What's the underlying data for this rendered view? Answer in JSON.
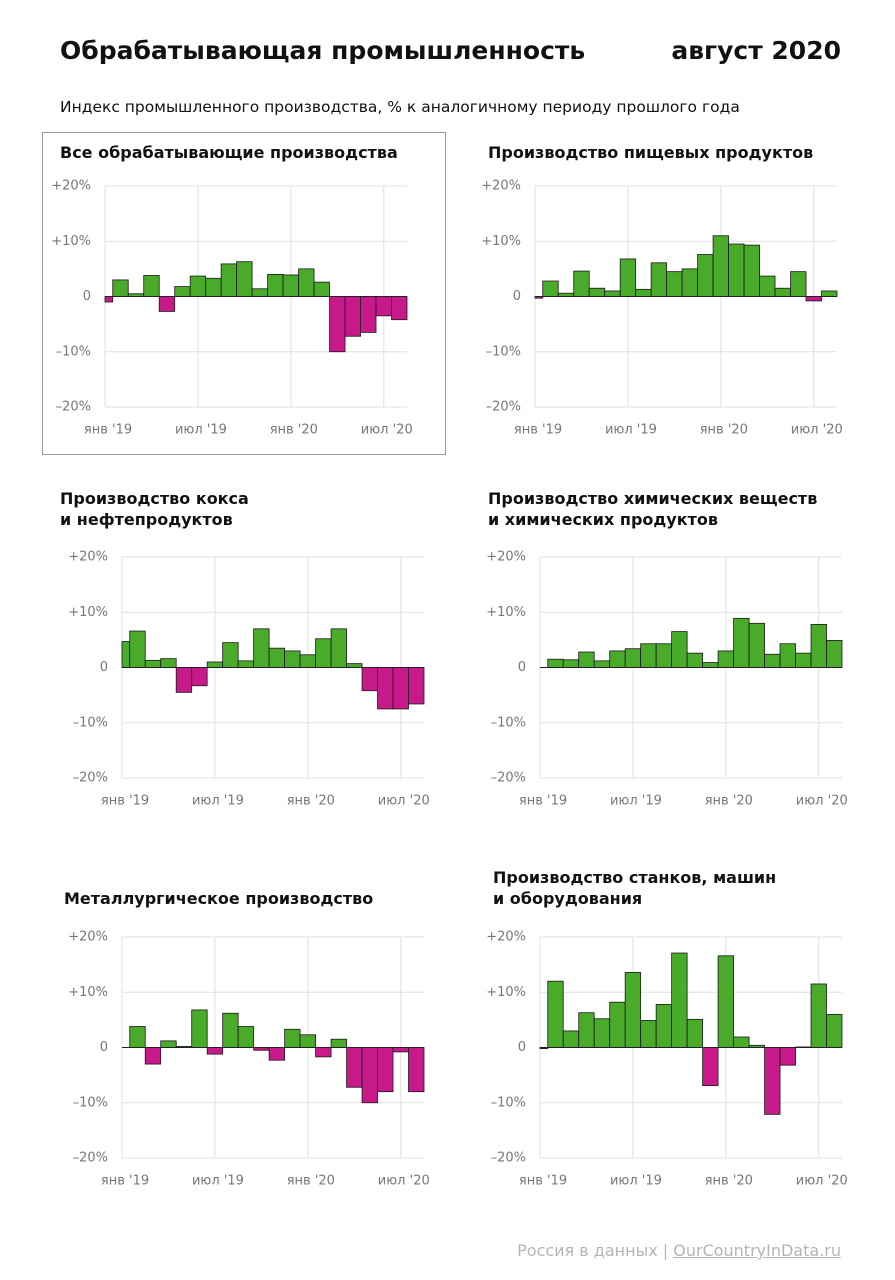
{
  "title": "Обрабатывающая промышленность",
  "date": "август 2020",
  "subtitle": "Индекс промышленного производства, % к аналогичному периоду прошлого года",
  "source": "Россия в данных",
  "separator": "|",
  "link": "OurCountryInData.ru",
  "chart_data": [
    {
      "type": "bar",
      "title": "Все обрабатывающие производства",
      "categories": [
        "янв '19",
        null,
        null,
        null,
        null,
        null,
        "июл '19",
        null,
        null,
        null,
        null,
        null,
        "янв '20",
        null,
        null,
        null,
        null,
        null,
        "июл '20",
        null
      ],
      "values": [
        -1,
        3,
        0.5,
        3.8,
        -2.7,
        1.8,
        3.7,
        3.3,
        5.9,
        6.3,
        1.4,
        4.0,
        3.9,
        5.0,
        2.6,
        -10,
        -7.2,
        -6.5,
        -3.5,
        -4.2
      ],
      "ylim": [
        -20,
        20
      ],
      "yticks": [
        {
          "value": -20,
          "label": "–20%"
        },
        {
          "value": -10,
          "label": "–10%"
        },
        0,
        {
          "value": 10,
          "label": "+10%"
        },
        {
          "value": 20,
          "label": "+20%"
        }
      ],
      "grid": true,
      "positive_color": "#4aaa2a",
      "negative_color": "#c8198a"
    },
    {
      "type": "bar",
      "title": "Производство пищевых продуктов",
      "categories": [
        "янв '19",
        null,
        null,
        null,
        null,
        null,
        "июл '19",
        null,
        null,
        null,
        null,
        null,
        "янв '20",
        null,
        null,
        null,
        null,
        null,
        "июл '20",
        null
      ],
      "values": [
        -0.3,
        2.8,
        0.6,
        4.6,
        1.5,
        1.0,
        6.8,
        1.3,
        6.1,
        4.5,
        5.0,
        7.6,
        11.0,
        9.5,
        9.3,
        3.7,
        1.5,
        4.5,
        -0.8,
        1.0
      ],
      "ylim": [
        -20,
        20
      ],
      "yticks": [
        {
          "value": -20,
          "label": "–20%"
        },
        {
          "value": -10,
          "label": "–10%"
        },
        0,
        {
          "value": 10,
          "label": "+10%"
        },
        {
          "value": 20,
          "label": "+20%"
        }
      ],
      "grid": true,
      "positive_color": "#4aaa2a",
      "negative_color": "#c8198a"
    },
    {
      "type": "bar",
      "title": "Производство кокса\nи нефтепродуктов",
      "categories": [
        "янв '19",
        null,
        null,
        null,
        null,
        null,
        "июл '19",
        null,
        null,
        null,
        null,
        null,
        "янв '20",
        null,
        null,
        null,
        null,
        null,
        "июл '20",
        null
      ],
      "values": [
        4.7,
        6.6,
        1.3,
        1.6,
        -4.5,
        -3.3,
        1.0,
        4.5,
        1.2,
        7.0,
        3.5,
        3.0,
        2.3,
        5.2,
        7.0,
        0.7,
        -4.2,
        -7.5,
        -7.5,
        -6.6
      ],
      "ylim": [
        -20,
        20
      ],
      "yticks": [
        {
          "value": -20,
          "label": "–20%"
        },
        {
          "value": -10,
          "label": "–10%"
        },
        0,
        {
          "value": 10,
          "label": "+10%"
        },
        {
          "value": 20,
          "label": "+20%"
        }
      ],
      "grid": true,
      "positive_color": "#4aaa2a",
      "negative_color": "#c8198a"
    },
    {
      "type": "bar",
      "title": "Производство химических веществ\nи химических продуктов",
      "categories": [
        "янв '19",
        null,
        null,
        null,
        null,
        null,
        "июл '19",
        null,
        null,
        null,
        null,
        null,
        "янв '20",
        null,
        null,
        null,
        null,
        null,
        "июл '20",
        null
      ],
      "values": [
        0,
        1.5,
        1.4,
        2.8,
        1.2,
        3.0,
        3.4,
        4.3,
        4.3,
        6.5,
        2.6,
        0.9,
        3.0,
        8.9,
        8.0,
        2.4,
        4.3,
        2.6,
        7.8,
        4.9
      ],
      "ylim": [
        -20,
        20
      ],
      "yticks": [
        {
          "value": -20,
          "label": "–20%"
        },
        {
          "value": -10,
          "label": "–10%"
        },
        0,
        {
          "value": 10,
          "label": "+10%"
        },
        {
          "value": 20,
          "label": "+20%"
        }
      ],
      "grid": true,
      "positive_color": "#4aaa2a",
      "negative_color": "#c8198a"
    },
    {
      "type": "bar",
      "title": "Металлургическое производство",
      "categories": [
        "янв '19",
        null,
        null,
        null,
        null,
        null,
        "июл '19",
        null,
        null,
        null,
        null,
        null,
        "янв '20",
        null,
        null,
        null,
        null,
        null,
        "июл '20",
        null
      ],
      "values": [
        0,
        3.8,
        -3.0,
        1.2,
        0.2,
        6.8,
        -1.2,
        6.2,
        3.8,
        -0.5,
        -2.3,
        3.3,
        2.3,
        -1.7,
        1.5,
        -7.2,
        -10,
        -8.0,
        -0.8,
        -8.0
      ],
      "ylim": [
        -20,
        20
      ],
      "yticks": [
        {
          "value": -20,
          "label": "–20%"
        },
        {
          "value": -10,
          "label": "–10%"
        },
        0,
        {
          "value": 10,
          "label": "+10%"
        },
        {
          "value": 20,
          "label": "+20%"
        }
      ],
      "grid": true,
      "positive_color": "#4aaa2a",
      "negative_color": "#c8198a"
    },
    {
      "type": "bar",
      "title": "Производство станков, машин\nи оборудования",
      "categories": [
        "янв '19",
        null,
        null,
        null,
        null,
        null,
        "июл '19",
        null,
        null,
        null,
        null,
        null,
        "янв '20",
        null,
        null,
        null,
        null,
        null,
        "июл '20",
        null
      ],
      "values": [
        -0.2,
        12.0,
        3.0,
        6.3,
        5.2,
        8.2,
        13.6,
        4.9,
        7.8,
        17.1,
        5.1,
        -6.9,
        16.6,
        1.9,
        0.4,
        -12.1,
        -3.2,
        0.1,
        11.5,
        6.0
      ],
      "ylim": [
        -20,
        20
      ],
      "yticks": [
        {
          "value": -20,
          "label": "–20%"
        },
        {
          "value": -10,
          "label": "–10%"
        },
        0,
        {
          "value": 10,
          "label": "+10%"
        },
        {
          "value": 20,
          "label": "+20%"
        }
      ],
      "grid": true,
      "positive_color": "#4aaa2a",
      "negative_color": "#c8198a"
    }
  ]
}
